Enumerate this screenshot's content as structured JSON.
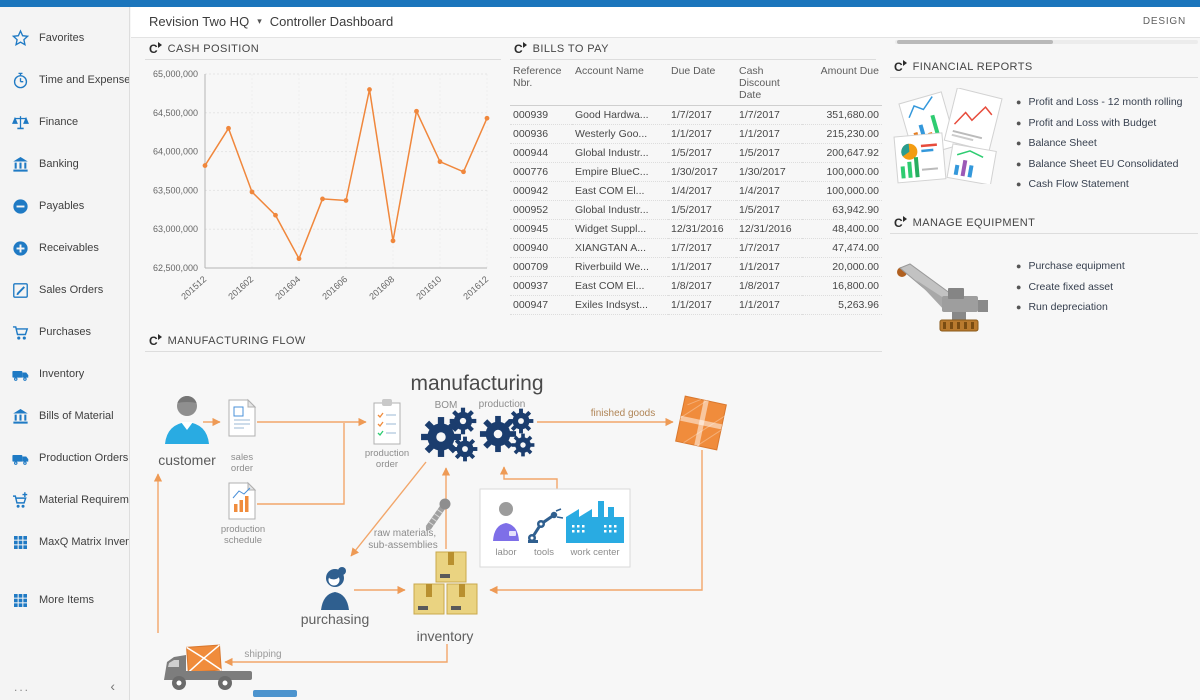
{
  "app": {
    "design_label": "DESIGN"
  },
  "header": {
    "company": "Revision Two HQ",
    "dashboard": "Controller Dashboard"
  },
  "icons": {
    "refresh": "C",
    "caret_down": "▾",
    "more_dots": "...",
    "collapse": "‹"
  },
  "colors": {
    "top_bar": "#1B75BC",
    "accent_blue": "#1F7AC4",
    "chart_line": "#F0873C",
    "arrow_orange": "#EE9A55",
    "link_blue": "#1F7AC4"
  },
  "sidebar": {
    "items": [
      {
        "id": "favorites",
        "label": "Favorites",
        "icon": "star"
      },
      {
        "id": "time-and-expenses",
        "label": "Time and Expenses",
        "icon": "clock"
      },
      {
        "id": "finance",
        "label": "Finance",
        "icon": "scales"
      },
      {
        "id": "banking",
        "label": "Banking",
        "icon": "bank"
      },
      {
        "id": "payables",
        "label": "Payables",
        "icon": "minus-circle"
      },
      {
        "id": "receivables",
        "label": "Receivables",
        "icon": "plus-circle"
      },
      {
        "id": "sales-orders",
        "label": "Sales Orders",
        "icon": "edit"
      },
      {
        "id": "purchases",
        "label": "Purchases",
        "icon": "cart"
      },
      {
        "id": "inventory",
        "label": "Inventory",
        "icon": "truck"
      },
      {
        "id": "bills-of-material",
        "label": "Bills of Material",
        "icon": "bank"
      },
      {
        "id": "production-orders",
        "label": "Production Orders",
        "icon": "truck"
      },
      {
        "id": "material-requirements",
        "label": "Material Requirem...",
        "icon": "cart-plus"
      },
      {
        "id": "maxq-matrix-inventory",
        "label": "MaxQ Matrix Invent...",
        "icon": "grid"
      },
      {
        "id": "more-items",
        "label": "More Items",
        "icon": "grid",
        "gap_before": true
      }
    ]
  },
  "panels": {
    "cash_position": {
      "title": "CASH POSITION"
    },
    "bills_to_pay": {
      "title": "BILLS TO PAY",
      "columns": [
        "Reference Nbr.",
        "Account Name",
        "Due Date",
        "Cash Discount Date",
        "Amount Due"
      ],
      "rows": [
        [
          "000939",
          "Good Hardwa...",
          "1/7/2017",
          "1/7/2017",
          "351,680.00"
        ],
        [
          "000936",
          "Westerly Goo...",
          "1/1/2017",
          "1/1/2017",
          "215,230.00"
        ],
        [
          "000944",
          "Global Industr...",
          "1/5/2017",
          "1/5/2017",
          "200,647.92"
        ],
        [
          "000776",
          "Empire BlueC...",
          "1/30/2017",
          "1/30/2017",
          "100,000.00"
        ],
        [
          "000942",
          "East COM El...",
          "1/4/2017",
          "1/4/2017",
          "100,000.00"
        ],
        [
          "000952",
          "Global Industr...",
          "1/5/2017",
          "1/5/2017",
          "63,942.90"
        ],
        [
          "000945",
          "Widget Suppl...",
          "12/31/2016",
          "12/31/2016",
          "48,400.00"
        ],
        [
          "000940",
          "XIANGTAN A...",
          "1/7/2017",
          "1/7/2017",
          "47,474.00"
        ],
        [
          "000709",
          "Riverbuild We...",
          "1/1/2017",
          "1/1/2017",
          "20,000.00"
        ],
        [
          "000937",
          "East COM El...",
          "1/8/2017",
          "1/8/2017",
          "16,800.00"
        ],
        [
          "000947",
          "Exiles Indsyst...",
          "1/1/2017",
          "1/1/2017",
          "5,263.96"
        ]
      ]
    },
    "financial_reports": {
      "title": "FINANCIAL REPORTS",
      "links": [
        "Profit and Loss - 12 month rolling",
        "Profit and Loss with Budget",
        "Balance Sheet",
        "Balance Sheet EU Consolidated",
        "Cash Flow Statement"
      ]
    },
    "manage_equipment": {
      "title": "MANAGE EQUIPMENT",
      "links": [
        "Purchase equipment",
        "Create fixed asset",
        "Run depreciation"
      ]
    },
    "manufacturing_flow": {
      "title": "MANUFACTURING FLOW"
    }
  },
  "flow": {
    "manufacturing": "manufacturing",
    "bom": "BOM",
    "production": "production",
    "customer": "customer",
    "sales_order_l1": "sales",
    "sales_order_l2": "order",
    "production_schedule_l1": "production",
    "production_schedule_l2": "schedule",
    "production_order_l1": "production",
    "production_order_l2": "order",
    "finished_goods": "finished goods",
    "raw_materials_l1": "raw materials,",
    "raw_materials_l2": "sub-assemblies",
    "labor": "labor",
    "tools": "tools",
    "work_center": "work center",
    "purchasing": "purchasing",
    "inventory": "inventory",
    "shipping": "shipping"
  },
  "chart_data": {
    "type": "line",
    "title": "CASH POSITION",
    "x": [
      "201512",
      "201601",
      "201602",
      "201603",
      "201604",
      "201605",
      "201606",
      "201607",
      "201608",
      "201609",
      "201610",
      "201611",
      "201612"
    ],
    "values": [
      63820000,
      64300000,
      63480000,
      63180000,
      62620000,
      63390000,
      63370000,
      64800000,
      62850000,
      64520000,
      63870000,
      63740000,
      64430000
    ],
    "x_tick_labels": [
      "201512",
      "201602",
      "201604",
      "201606",
      "201608",
      "201610",
      "201612"
    ],
    "y_ticks": [
      62500000,
      63000000,
      63500000,
      64000000,
      64500000,
      65000000
    ],
    "ylim": [
      62500000,
      65000000
    ],
    "xlabel": "",
    "ylabel": "",
    "grid": true,
    "legend": "none",
    "line_color": "#F0873C"
  }
}
